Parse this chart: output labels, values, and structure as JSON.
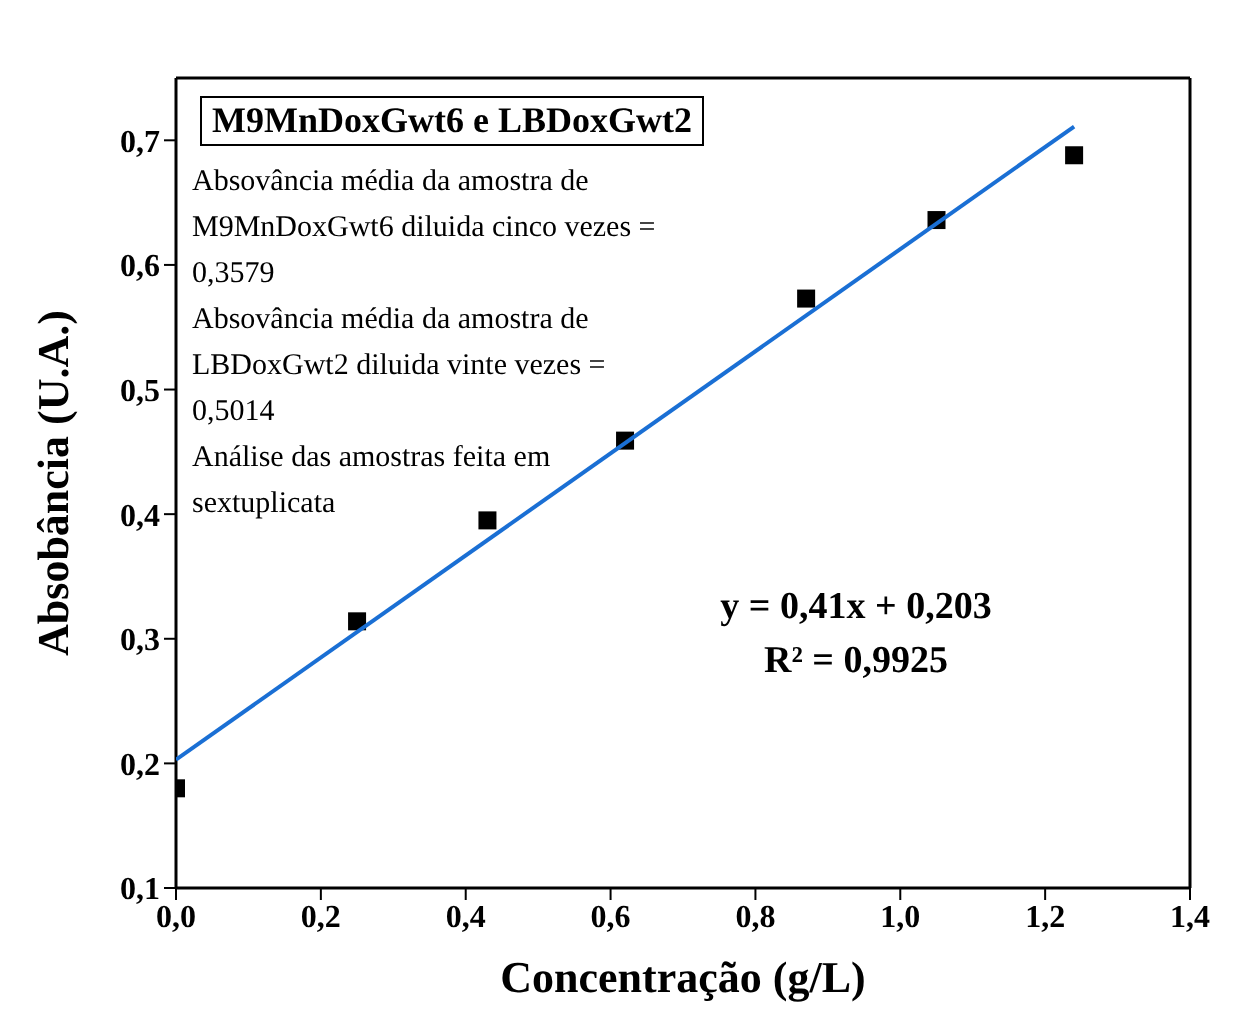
{
  "chart_data": {
    "type": "scatter",
    "title": "M9MnDoxGwt6 e LBDoxGwt2",
    "xlabel": "Concentração (g/L)",
    "ylabel": "Absobância (U.A.)",
    "xlim": [
      0,
      1.4
    ],
    "xticks": [
      {
        "value": 0,
        "label": "0,0"
      },
      {
        "value": 0.2,
        "label": "0,2"
      },
      {
        "value": 0.4,
        "label": "0,4"
      },
      {
        "value": 0.6,
        "label": "0,6"
      },
      {
        "value": 0.8,
        "label": "0,8"
      },
      {
        "value": 1,
        "label": "1,0"
      },
      {
        "value": 1.2,
        "label": "1,2"
      },
      {
        "value": 1.4,
        "label": "1,4"
      }
    ],
    "ylim": [
      0.1,
      0.75
    ],
    "yticks": [
      {
        "value": 0.1,
        "label": "0,1"
      },
      {
        "value": 0.2,
        "label": "0,2"
      },
      {
        "value": 0.3,
        "label": "0,3"
      },
      {
        "value": 0.4,
        "label": "0,4"
      },
      {
        "value": 0.5,
        "label": "0,5"
      },
      {
        "value": 0.6,
        "label": "0,6"
      },
      {
        "value": 0.7,
        "label": "0,7"
      }
    ],
    "series": [
      {
        "type": "scatter",
        "marker": "square",
        "color": "#000000",
        "x": [
          0,
          0.25,
          0.43,
          0.62,
          0.87,
          1.05,
          1.24
        ],
        "values": [
          0.18,
          0.314,
          0.395,
          0.459,
          0.573,
          0.636,
          0.688
        ]
      },
      {
        "type": "line",
        "marker": "none",
        "color": "#1a6fd4",
        "x": [
          0,
          1.24
        ],
        "values": [
          0.203,
          0.711
        ]
      }
    ],
    "annotations": [
      "Absovância média da amostra de M9MnDoxGwt6 diluida cinco vezes = 0,3579",
      "Absovância média da amostra de LBDoxGwt2 diluida vinte vezes = 0,5014",
      "Análise das amostras feita em sextuplicata",
      "y = 0,41x + 0,203",
      "R² = 0,9925"
    ]
  }
}
